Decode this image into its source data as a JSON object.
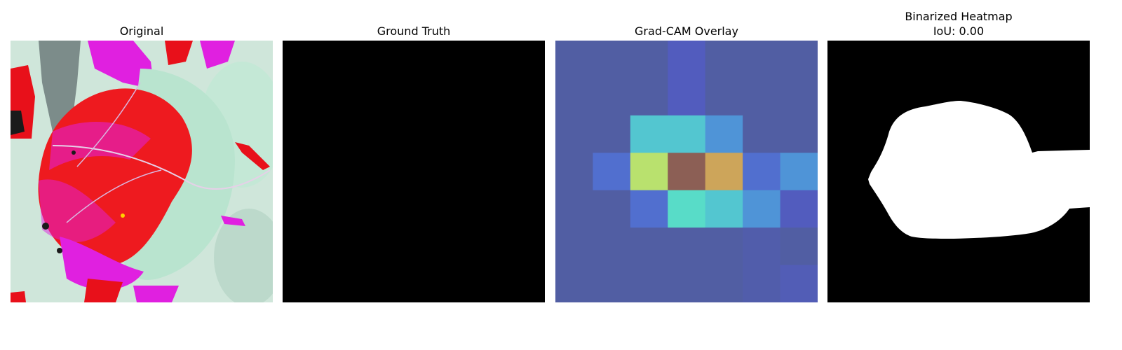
{
  "panels": [
    {
      "title": "Original",
      "content": "leaf-photo"
    },
    {
      "title": "Ground Truth",
      "content": "empty-mask"
    },
    {
      "title": "Grad-CAM Overlay",
      "content": "heatmap-overlay"
    },
    {
      "title_lines": [
        "Binarized Heatmap",
        "IoU: 0.00"
      ],
      "content": "binary-mask"
    }
  ],
  "gradcam_grid": [
    [
      0.05,
      0.05,
      0.05,
      0.15,
      0.05,
      0.05,
      0.05
    ],
    [
      0.05,
      0.05,
      0.05,
      0.15,
      0.05,
      0.05,
      0.05
    ],
    [
      0.05,
      0.05,
      0.45,
      0.45,
      0.35,
      0.05,
      0.05
    ],
    [
      0.05,
      0.25,
      0.6,
      1.0,
      0.75,
      0.25,
      0.35
    ],
    [
      0.05,
      0.05,
      0.25,
      0.5,
      0.45,
      0.35,
      0.15
    ],
    [
      0.05,
      0.05,
      0.05,
      0.05,
      0.05,
      0.08,
      0.05
    ],
    [
      0.05,
      0.05,
      0.05,
      0.05,
      0.05,
      0.08,
      0.12
    ]
  ],
  "iou": 0.0
}
